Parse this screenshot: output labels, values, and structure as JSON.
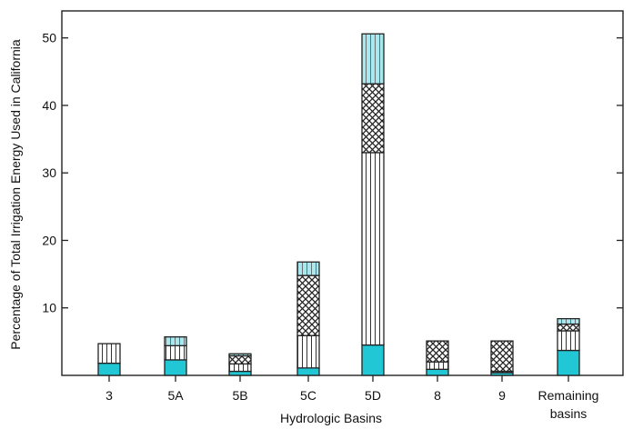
{
  "chart_data": {
    "type": "bar",
    "stacked": true,
    "xlabel": "Hydrologic Basins",
    "ylabel": "Percentage of Total Irrigation Energy Used in California",
    "ylim": [
      0,
      54
    ],
    "yticks": [
      10,
      20,
      30,
      40,
      50
    ],
    "grid": false,
    "categories": [
      "3",
      "5A",
      "5B",
      "5C",
      "5D",
      "8",
      "9",
      "Remaining basins"
    ],
    "category_lines": [
      [
        "3"
      ],
      [
        "5A"
      ],
      [
        "5B"
      ],
      [
        "5C"
      ],
      [
        "5D"
      ],
      [
        "8"
      ],
      [
        "9"
      ],
      [
        "Remaining",
        "basins"
      ]
    ],
    "series": [
      {
        "pattern": "solid",
        "values": [
          1.8,
          2.3,
          0.6,
          1.1,
          4.5,
          0.9,
          0.4,
          3.7
        ]
      },
      {
        "pattern": "vertical",
        "values": [
          2.9,
          2.1,
          1.1,
          4.8,
          28.5,
          1.1,
          0.2,
          2.9
        ]
      },
      {
        "pattern": "crosshatch",
        "values": [
          0,
          0,
          1.2,
          8.9,
          10.2,
          3.1,
          4.5,
          1.0
        ]
      },
      {
        "pattern": "light-vertical",
        "values": [
          0,
          1.3,
          0.3,
          2.0,
          7.4,
          0,
          0,
          0.8
        ]
      }
    ],
    "colors": {
      "solid": "#22c7d6",
      "light": "#a8e8ee",
      "outline": "#222222",
      "hatch": "#333333"
    }
  }
}
